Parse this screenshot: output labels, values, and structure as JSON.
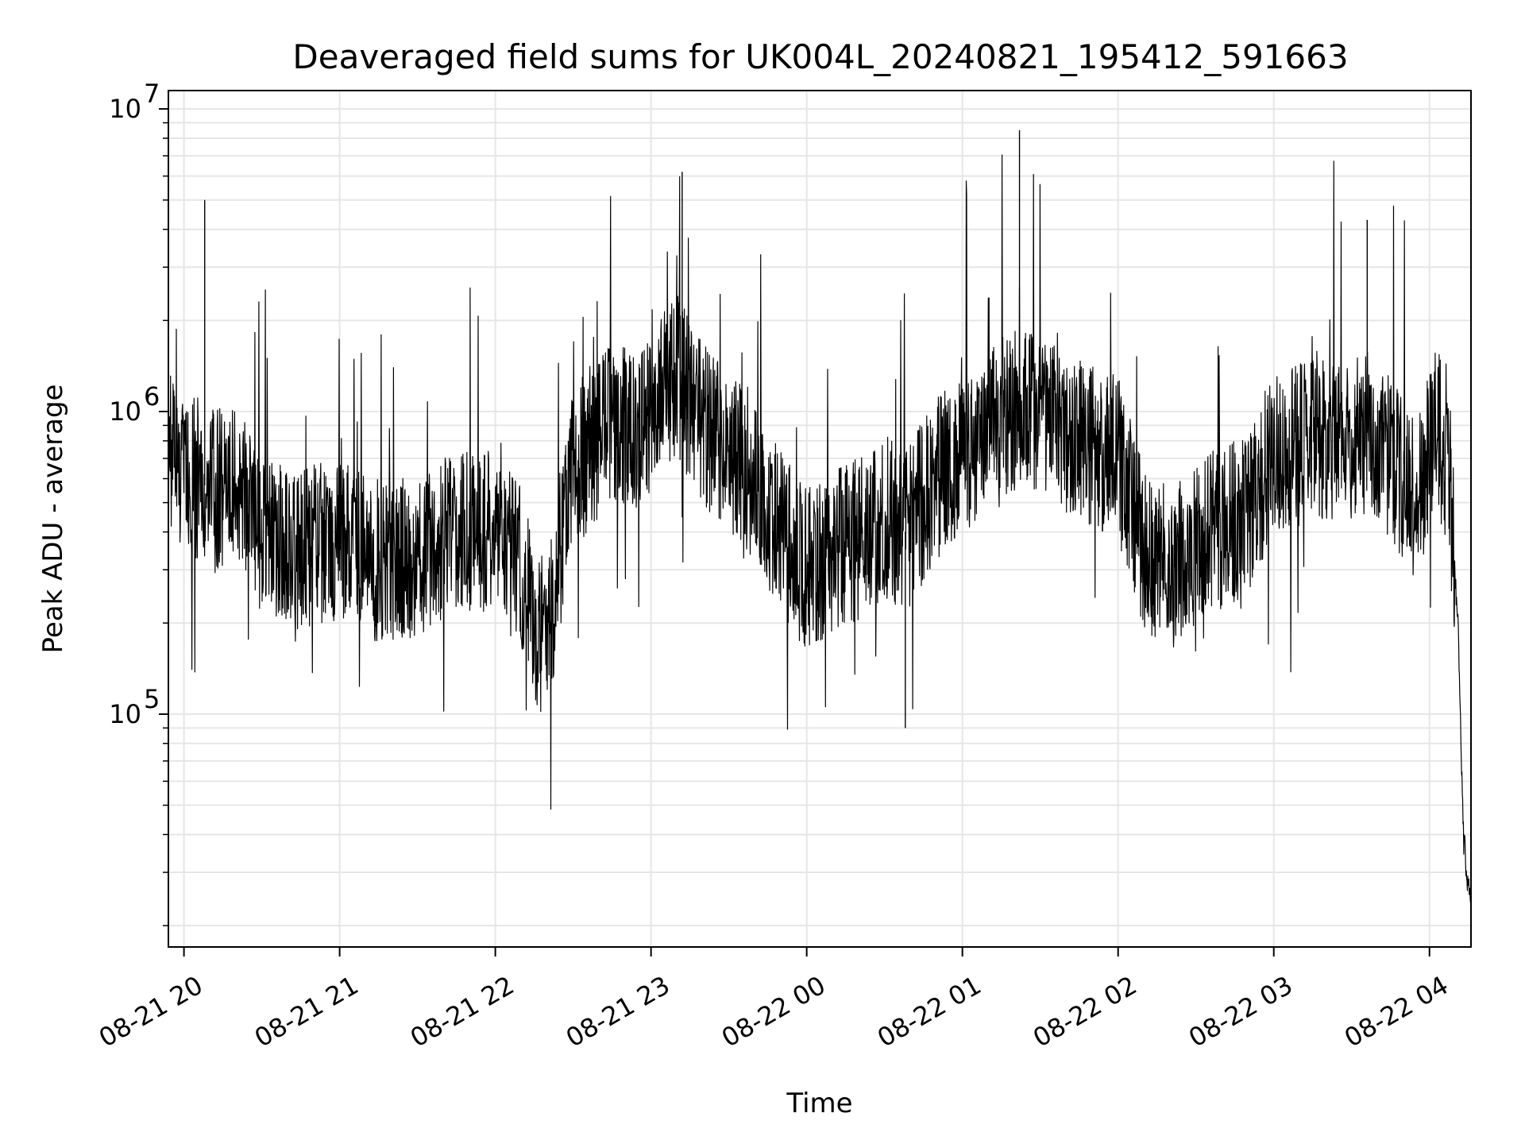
{
  "chart_data": {
    "type": "line",
    "title": "Deaveraged field sums for UK004L_20240821_195412_591663",
    "xlabel": "Time",
    "ylabel": "Peak ADU - average",
    "yscale": "log",
    "ylim": [
      17000,
      11500000
    ],
    "xlim": [
      "2024-08-21 19:54",
      "2024-08-22 04:16"
    ],
    "grid": true,
    "line_color": "#000000",
    "grid_color": "#e6e6e6",
    "x_ticks": [
      {
        "t": "2024-08-21 20:00",
        "label": "08-21 20"
      },
      {
        "t": "2024-08-21 21:00",
        "label": "08-21 21"
      },
      {
        "t": "2024-08-21 22:00",
        "label": "08-21 22"
      },
      {
        "t": "2024-08-21 23:00",
        "label": "08-21 23"
      },
      {
        "t": "2024-08-22 00:00",
        "label": "08-22 00"
      },
      {
        "t": "2024-08-22 01:00",
        "label": "08-22 01"
      },
      {
        "t": "2024-08-22 02:00",
        "label": "08-22 02"
      },
      {
        "t": "2024-08-22 03:00",
        "label": "08-22 03"
      },
      {
        "t": "2024-08-22 04:00",
        "label": "08-22 04"
      }
    ],
    "y_ticks": [
      {
        "value": 100000,
        "base": "10",
        "exp": "5"
      },
      {
        "value": 1000000,
        "base": "10",
        "exp": "6"
      },
      {
        "value": 10000000,
        "base": "10",
        "exp": "7"
      }
    ],
    "series": [
      {
        "x": [
          "2024-08-21 19:54",
          "2024-08-21 20:00",
          "2024-08-21 20:05",
          "2024-08-21 20:10",
          "2024-08-21 20:20",
          "2024-08-21 20:30",
          "2024-08-21 20:45",
          "2024-08-21 21:00",
          "2024-08-21 21:15",
          "2024-08-21 21:30",
          "2024-08-21 21:45",
          "2024-08-21 22:00",
          "2024-08-21 22:10",
          "2024-08-21 22:15",
          "2024-08-21 22:20",
          "2024-08-21 22:30",
          "2024-08-21 22:45",
          "2024-08-21 22:55",
          "2024-08-21 23:05",
          "2024-08-21 23:10",
          "2024-08-21 23:15",
          "2024-08-21 23:25",
          "2024-08-21 23:40",
          "2024-08-21 23:50",
          "2024-08-22 00:00",
          "2024-08-22 00:10",
          "2024-08-22 00:20",
          "2024-08-22 00:30",
          "2024-08-22 00:38",
          "2024-08-22 00:50",
          "2024-08-22 01:00",
          "2024-08-22 01:10",
          "2024-08-22 01:20",
          "2024-08-22 01:30",
          "2024-08-22 01:45",
          "2024-08-22 02:00",
          "2024-08-22 02:10",
          "2024-08-22 02:20",
          "2024-08-22 02:35",
          "2024-08-22 02:50",
          "2024-08-22 03:00",
          "2024-08-22 03:15",
          "2024-08-22 03:30",
          "2024-08-22 03:36",
          "2024-08-22 03:45",
          "2024-08-22 03:55",
          "2024-08-22 04:03",
          "2024-08-22 04:08",
          "2024-08-22 04:11",
          "2024-08-22 04:13",
          "2024-08-22 04:16"
        ],
        "y": [
          700000,
          650000,
          600000,
          550000,
          600000,
          400000,
          350000,
          380000,
          320000,
          330000,
          400000,
          400000,
          300000,
          200000,
          180000,
          650000,
          900000,
          850000,
          1200000,
          1300000,
          1100000,
          800000,
          600000,
          400000,
          300000,
          350000,
          380000,
          450000,
          400000,
          600000,
          700000,
          900000,
          1000000,
          950000,
          800000,
          700000,
          350000,
          300000,
          400000,
          450000,
          750000,
          800000,
          800000,
          850000,
          700000,
          500000,
          900000,
          550000,
          200000,
          40000,
          22000
        ]
      }
    ]
  }
}
